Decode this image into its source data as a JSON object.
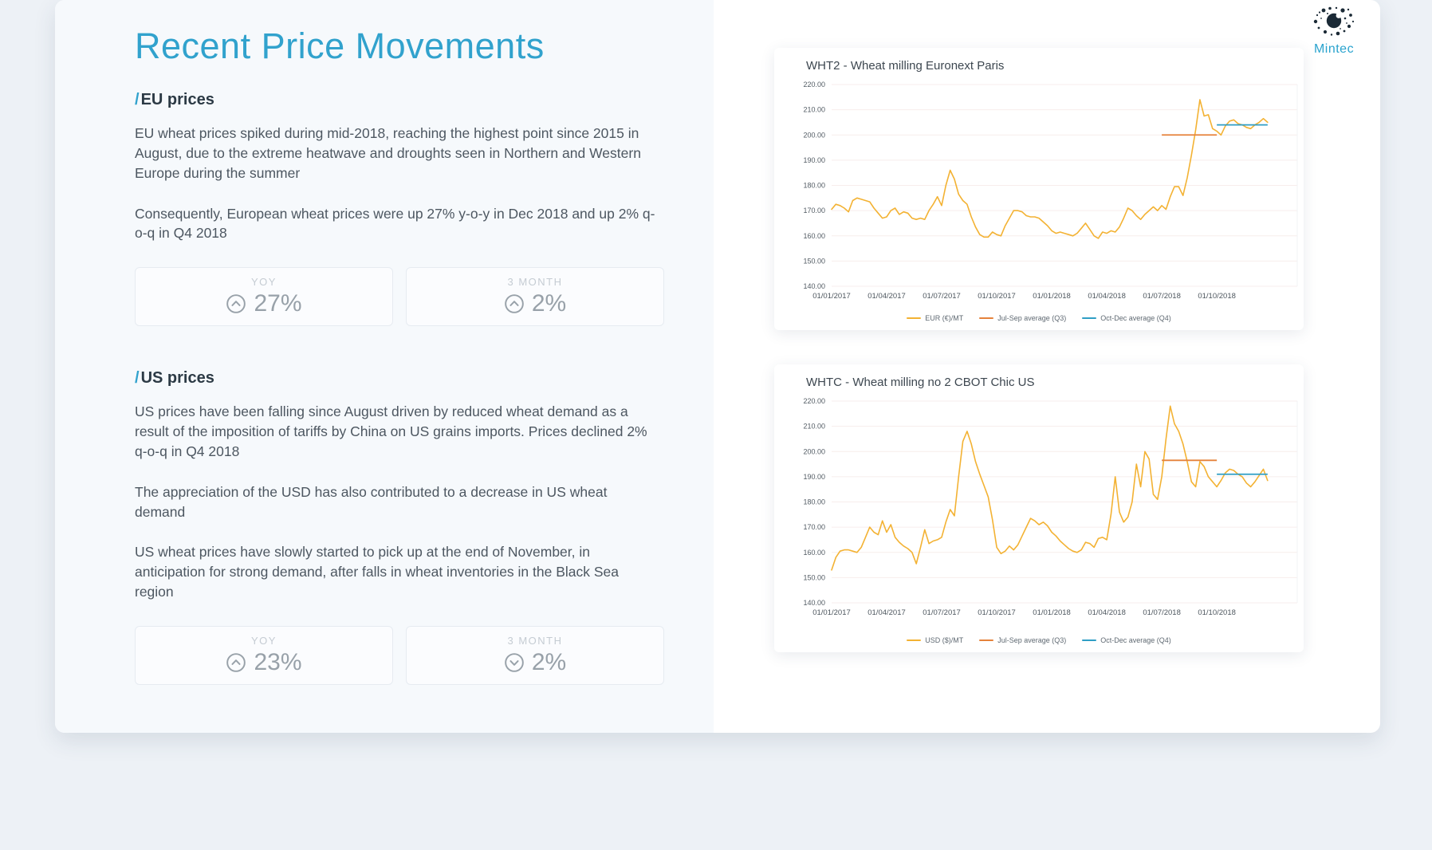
{
  "page": {
    "title": "Recent Price Movements"
  },
  "brand": {
    "name": "Mintec",
    "color": "#2aa3ce"
  },
  "sections": [
    {
      "heading_slash": "/",
      "heading": "EU prices",
      "paragraphs": [
        "EU wheat prices spiked during mid-2018, reaching the highest point since 2015 in August, due to the extreme heatwave and droughts seen in Northern and Western Europe during the summer",
        "Consequently, European wheat prices were up 27% y-o-y in Dec 2018 and up 2% q-o-q in Q4 2018"
      ],
      "stats": [
        {
          "label": "YOY",
          "value": "27%",
          "direction": "up"
        },
        {
          "label": "3 MONTH",
          "value": "2%",
          "direction": "up"
        }
      ]
    },
    {
      "heading_slash": "/",
      "heading": "US prices",
      "paragraphs": [
        "US prices have been falling since August driven by reduced wheat demand as a result of the imposition of tariffs by China on US grains imports. Prices declined 2% q-o-q in Q4 2018",
        "The appreciation of the USD has also contributed to a decrease in US wheat demand",
        "US wheat prices have slowly started to pick up at the end of November, in anticipation for strong demand, after falls in wheat inventories in the Black Sea region"
      ],
      "stats": [
        {
          "label": "YOY",
          "value": "23%",
          "direction": "up"
        },
        {
          "label": "3 MONTH",
          "value": "2%",
          "direction": "down"
        }
      ]
    }
  ],
  "chart_data": [
    {
      "type": "line",
      "title": "WHT2 - Wheat milling Euronext Paris",
      "ylabel": "EUR (€)/MT",
      "ylim": [
        140,
        220
      ],
      "yticks": [
        220,
        210,
        200,
        190,
        180,
        170,
        160,
        150,
        140
      ],
      "xticklabels": [
        "01/01/2017",
        "01/04/2017",
        "01/07/2017",
        "01/10/2017",
        "01/01/2018",
        "01/04/2018",
        "01/07/2018",
        "01/10/2018"
      ],
      "xtick_indices": [
        0,
        13,
        26,
        39,
        52,
        65,
        78,
        91
      ],
      "xmax": 110,
      "grid": true,
      "legend_position": "bottom",
      "series": [
        {
          "name": "EUR (€)/MT",
          "color": "#f3b233",
          "type": "line",
          "values": [
            170.5,
            172.5,
            172,
            171,
            169.5,
            174,
            175,
            174.5,
            174,
            173.5,
            171,
            169,
            167,
            167.5,
            170,
            171,
            168.5,
            169.5,
            169,
            167,
            166.5,
            167,
            166.5,
            170,
            172.5,
            175.5,
            172,
            180,
            186,
            182.5,
            176.5,
            174,
            172.5,
            167.5,
            163.5,
            160.5,
            159.5,
            159.5,
            161.5,
            160.5,
            160,
            164,
            167,
            170,
            170,
            169.5,
            168,
            167.5,
            167.5,
            167,
            165.5,
            164,
            162,
            161,
            161.5,
            161,
            160.5,
            160,
            161,
            163,
            165,
            162.5,
            160,
            159,
            161.5,
            161,
            162,
            161.5,
            163.5,
            167,
            171,
            170,
            168,
            166.5,
            168.5,
            170,
            171.5,
            170,
            172,
            170.5,
            175.5,
            179.5,
            179.5,
            176,
            183,
            192,
            202,
            214,
            207.5,
            208,
            202.5,
            201.5,
            200,
            203.5,
            205.5,
            206,
            204.5,
            204,
            203,
            202.5,
            204,
            205,
            206.5,
            205
          ]
        },
        {
          "name": "Jul-Sep average (Q3)",
          "color": "#e5823b",
          "type": "segment",
          "value": 200,
          "start": 78,
          "end": 91
        },
        {
          "name": "Oct-Dec average (Q4)",
          "color": "#2f9ec5",
          "type": "segment",
          "value": 204,
          "start": 91,
          "end": 103
        }
      ]
    },
    {
      "type": "line",
      "title": "WHTC - Wheat milling no 2 CBOT Chic US",
      "ylabel": "USD ($)/MT",
      "ylim": [
        140,
        220
      ],
      "yticks": [
        220,
        210,
        200,
        190,
        180,
        170,
        160,
        150,
        140
      ],
      "xticklabels": [
        "01/01/2017",
        "01/04/2017",
        "01/07/2017",
        "01/10/2017",
        "01/01/2018",
        "01/04/2018",
        "01/07/2018",
        "01/10/2018"
      ],
      "xtick_indices": [
        0,
        13,
        26,
        39,
        52,
        65,
        78,
        91
      ],
      "xmax": 110,
      "grid": true,
      "legend_position": "bottom",
      "series": [
        {
          "name": "USD ($)/MT",
          "color": "#f3b233",
          "type": "line",
          "values": [
            153,
            158,
            160.5,
            161,
            161,
            160.5,
            160,
            162,
            166,
            170,
            168,
            167,
            172.5,
            168,
            171,
            166,
            164,
            162.5,
            161.5,
            160,
            155.5,
            162,
            169,
            163.5,
            164.5,
            165,
            166,
            172,
            177,
            174.5,
            190,
            204,
            208,
            203,
            196,
            191,
            186.5,
            182,
            173,
            162,
            159.5,
            160.5,
            162.5,
            161,
            163,
            166.5,
            170,
            173.5,
            172.5,
            171,
            172,
            170.5,
            168,
            166.5,
            164.5,
            163,
            161.5,
            160.5,
            160,
            161,
            164,
            163.5,
            162,
            165.5,
            166,
            165,
            175,
            190,
            176,
            172,
            174,
            180,
            195,
            186,
            200,
            197,
            183,
            181,
            190,
            205,
            218,
            211,
            208,
            203,
            196,
            188,
            186,
            196,
            194,
            190,
            188,
            186,
            188.5,
            191.5,
            193,
            192.5,
            191,
            190,
            187.5,
            186,
            188,
            190.5,
            193,
            188.5
          ]
        },
        {
          "name": "Jul-Sep average (Q3)",
          "color": "#e5823b",
          "type": "segment",
          "value": 196.5,
          "start": 78,
          "end": 91
        },
        {
          "name": "Oct-Dec average (Q4)",
          "color": "#2f9ec5",
          "type": "segment",
          "value": 191,
          "start": 91,
          "end": 103
        }
      ]
    }
  ]
}
